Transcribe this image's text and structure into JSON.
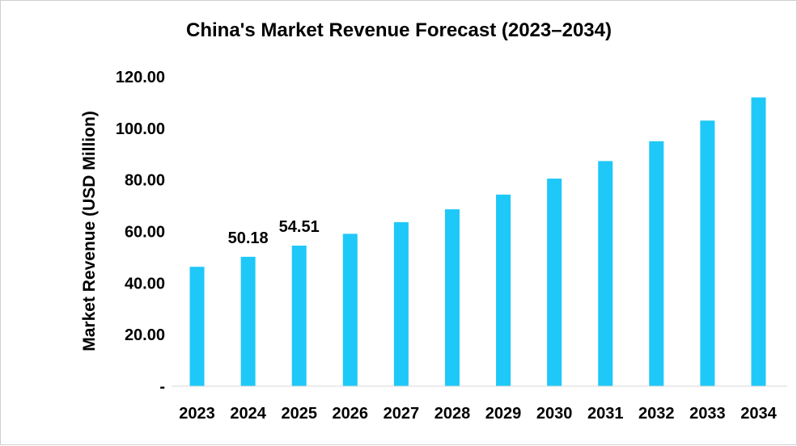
{
  "chart_data": {
    "type": "bar",
    "title": "China's Market Revenue Forecast (2023–2034)",
    "xlabel": "",
    "ylabel": "Market Revenue (USD Million)",
    "categories": [
      "2023",
      "2024",
      "2025",
      "2026",
      "2027",
      "2028",
      "2029",
      "2030",
      "2031",
      "2032",
      "2033",
      "2034"
    ],
    "values": [
      46.3,
      50.18,
      54.51,
      59.1,
      63.6,
      68.6,
      74.3,
      80.5,
      87.3,
      95.0,
      103.0,
      112.0
    ],
    "ylim": [
      0,
      120
    ],
    "yticks": [
      0,
      20,
      40,
      60,
      80,
      100,
      120
    ],
    "ytick_labels": [
      "-",
      "20.00",
      "40.00",
      "60.00",
      "80.00",
      "100.00",
      "120.00"
    ],
    "data_labels": [
      {
        "index": 1,
        "text": "50.18"
      },
      {
        "index": 2,
        "text": "54.51"
      }
    ],
    "bar_color": "#1EC8F8",
    "grid": false,
    "legend": "none"
  }
}
